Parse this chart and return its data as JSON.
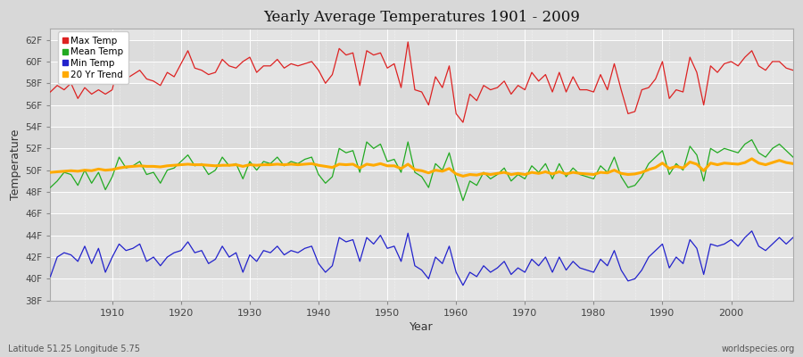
{
  "title": "Yearly Average Temperatures 1901 - 2009",
  "xlabel": "Year",
  "ylabel": "Temperature",
  "subtitle_left": "Latitude 51.25 Longitude 5.75",
  "subtitle_right": "worldspecies.org",
  "bg_color": "#e0e0e0",
  "plot_bg_color": "#e8e8e8",
  "years": [
    1901,
    1902,
    1903,
    1904,
    1905,
    1906,
    1907,
    1908,
    1909,
    1910,
    1911,
    1912,
    1913,
    1914,
    1915,
    1916,
    1917,
    1918,
    1919,
    1920,
    1921,
    1922,
    1923,
    1924,
    1925,
    1926,
    1927,
    1928,
    1929,
    1930,
    1931,
    1932,
    1933,
    1934,
    1935,
    1936,
    1937,
    1938,
    1939,
    1940,
    1941,
    1942,
    1943,
    1944,
    1945,
    1946,
    1947,
    1948,
    1949,
    1950,
    1951,
    1952,
    1953,
    1954,
    1955,
    1956,
    1957,
    1958,
    1959,
    1960,
    1961,
    1962,
    1963,
    1964,
    1965,
    1966,
    1967,
    1968,
    1969,
    1970,
    1971,
    1972,
    1973,
    1974,
    1975,
    1976,
    1977,
    1978,
    1979,
    1980,
    1981,
    1982,
    1983,
    1984,
    1985,
    1986,
    1987,
    1988,
    1989,
    1990,
    1991,
    1992,
    1993,
    1994,
    1995,
    1996,
    1997,
    1998,
    1999,
    2000,
    2001,
    2002,
    2003,
    2004,
    2005,
    2006,
    2007,
    2008,
    2009
  ],
  "max_temp": [
    57.2,
    57.8,
    57.4,
    58.0,
    56.6,
    57.6,
    57.0,
    57.4,
    57.0,
    57.4,
    60.2,
    58.4,
    58.8,
    59.2,
    58.4,
    58.2,
    57.8,
    59.0,
    58.6,
    59.8,
    61.0,
    59.4,
    59.2,
    58.8,
    59.0,
    60.2,
    59.6,
    59.4,
    60.0,
    60.4,
    59.0,
    59.6,
    59.6,
    60.2,
    59.4,
    59.8,
    59.6,
    59.8,
    60.0,
    59.2,
    58.0,
    58.8,
    61.2,
    60.6,
    60.8,
    57.8,
    61.0,
    60.6,
    60.8,
    59.4,
    59.8,
    57.6,
    61.8,
    57.4,
    57.2,
    56.0,
    58.6,
    57.6,
    59.6,
    55.2,
    54.4,
    57.0,
    56.4,
    57.8,
    57.4,
    57.6,
    58.2,
    57.0,
    57.8,
    57.4,
    59.0,
    58.2,
    58.8,
    57.2,
    59.0,
    57.2,
    58.6,
    57.4,
    57.4,
    57.2,
    58.8,
    57.4,
    59.8,
    57.4,
    55.2,
    55.4,
    57.4,
    57.6,
    58.4,
    60.0,
    56.6,
    57.4,
    57.2,
    60.4,
    59.0,
    56.0,
    59.6,
    59.0,
    59.8,
    60.0,
    59.6,
    60.4,
    61.0,
    59.6,
    59.2,
    60.0,
    60.0,
    59.4,
    59.2
  ],
  "mean_temp": [
    48.4,
    49.0,
    49.8,
    49.6,
    48.6,
    50.0,
    48.8,
    49.8,
    48.2,
    49.4,
    51.2,
    50.2,
    50.4,
    50.8,
    49.6,
    49.8,
    48.8,
    50.0,
    50.2,
    50.8,
    51.4,
    50.4,
    50.6,
    49.6,
    50.0,
    51.2,
    50.4,
    50.6,
    49.2,
    50.8,
    50.0,
    50.8,
    50.6,
    51.2,
    50.4,
    50.8,
    50.6,
    51.0,
    51.2,
    49.6,
    48.8,
    49.4,
    52.0,
    51.6,
    51.8,
    49.8,
    52.6,
    52.0,
    52.4,
    50.8,
    51.0,
    49.8,
    52.6,
    49.8,
    49.4,
    48.4,
    50.6,
    50.0,
    51.6,
    49.2,
    47.2,
    49.0,
    48.6,
    49.8,
    49.2,
    49.6,
    50.2,
    49.0,
    49.6,
    49.2,
    50.4,
    49.8,
    50.6,
    49.2,
    50.6,
    49.4,
    50.2,
    49.6,
    49.4,
    49.2,
    50.4,
    49.8,
    51.2,
    49.4,
    48.4,
    48.6,
    49.4,
    50.6,
    51.2,
    51.8,
    49.6,
    50.6,
    50.0,
    52.2,
    51.4,
    49.0,
    52.0,
    51.6,
    52.0,
    51.8,
    51.6,
    52.4,
    52.8,
    51.6,
    51.2,
    52.0,
    52.4,
    51.8,
    51.2
  ],
  "min_temp": [
    40.2,
    42.0,
    42.4,
    42.2,
    41.6,
    43.0,
    41.4,
    42.8,
    40.6,
    42.0,
    43.2,
    42.6,
    42.8,
    43.2,
    41.6,
    42.0,
    41.2,
    42.0,
    42.4,
    42.6,
    43.4,
    42.4,
    42.6,
    41.4,
    41.8,
    43.0,
    42.0,
    42.4,
    40.6,
    42.2,
    41.6,
    42.6,
    42.4,
    43.0,
    42.2,
    42.6,
    42.4,
    42.8,
    43.0,
    41.4,
    40.6,
    41.2,
    43.8,
    43.4,
    43.6,
    41.6,
    43.8,
    43.2,
    44.0,
    42.8,
    43.0,
    41.6,
    44.2,
    41.2,
    40.8,
    40.0,
    42.0,
    41.4,
    43.0,
    40.6,
    39.4,
    40.6,
    40.2,
    41.2,
    40.6,
    41.0,
    41.6,
    40.4,
    41.0,
    40.6,
    41.8,
    41.2,
    42.0,
    40.6,
    42.0,
    40.8,
    41.6,
    41.0,
    40.8,
    40.6,
    41.8,
    41.2,
    42.6,
    40.8,
    39.8,
    40.0,
    40.8,
    42.0,
    42.6,
    43.2,
    41.0,
    42.0,
    41.4,
    43.6,
    42.8,
    40.4,
    43.2,
    43.0,
    43.2,
    43.6,
    43.0,
    43.8,
    44.4,
    43.0,
    42.6,
    43.2,
    43.8,
    43.2,
    43.8
  ],
  "trend": [
    49.8,
    49.85,
    49.9,
    49.95,
    49.9,
    50.0,
    49.95,
    50.1,
    50.0,
    50.05,
    50.2,
    50.3,
    50.35,
    50.4,
    50.35,
    50.35,
    50.3,
    50.4,
    50.45,
    50.5,
    50.55,
    50.5,
    50.5,
    50.45,
    50.4,
    50.45,
    50.45,
    50.5,
    50.35,
    50.5,
    50.45,
    50.5,
    50.5,
    50.55,
    50.5,
    50.55,
    50.5,
    50.55,
    50.6,
    50.45,
    50.35,
    50.25,
    50.55,
    50.5,
    50.55,
    50.2,
    50.55,
    50.45,
    50.6,
    50.4,
    50.4,
    50.15,
    50.55,
    50.05,
    49.95,
    49.75,
    50.0,
    49.9,
    50.15,
    49.65,
    49.45,
    49.6,
    49.55,
    49.7,
    49.6,
    49.7,
    49.8,
    49.6,
    49.7,
    49.6,
    49.8,
    49.7,
    49.85,
    49.65,
    49.85,
    49.65,
    49.8,
    49.7,
    49.65,
    49.6,
    49.8,
    49.75,
    50.0,
    49.7,
    49.6,
    49.65,
    49.8,
    50.05,
    50.25,
    50.65,
    50.15,
    50.35,
    50.2,
    50.75,
    50.55,
    49.95,
    50.65,
    50.5,
    50.65,
    50.6,
    50.55,
    50.7,
    51.05,
    50.65,
    50.5,
    50.7,
    50.9,
    50.7,
    50.6
  ],
  "ylim": [
    38,
    63
  ],
  "yticks": [
    38,
    40,
    42,
    44,
    46,
    48,
    50,
    52,
    54,
    56,
    58,
    60,
    62
  ],
  "ytick_labels": [
    "38F",
    "40F",
    "42F",
    "44F",
    "46F",
    "48F",
    "50F",
    "52F",
    "54F",
    "56F",
    "58F",
    "60F",
    "62F"
  ],
  "xticks": [
    1910,
    1920,
    1930,
    1940,
    1950,
    1960,
    1970,
    1980,
    1990,
    2000
  ],
  "max_color": "#dd2222",
  "mean_color": "#22aa22",
  "min_color": "#2222cc",
  "trend_color": "#ffaa00",
  "legend_items": [
    "Max Temp",
    "Mean Temp",
    "Min Temp",
    "20 Yr Trend"
  ],
  "legend_colors": [
    "#dd2222",
    "#22aa22",
    "#2222cc",
    "#ffaa00"
  ],
  "band_colors": [
    "#e4e4e4",
    "#dcdcdc"
  ]
}
